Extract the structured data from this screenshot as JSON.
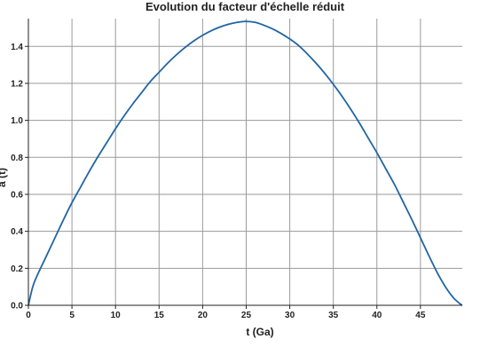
{
  "chart_data": {
    "type": "line",
    "title": "Evolution du facteur d'échelle réduit",
    "xlabel": "t (Ga)",
    "ylabel": "a (t)",
    "xlim": [
      0,
      49.8
    ],
    "ylim": [
      0,
      1.55
    ],
    "xticks": [
      0,
      5,
      10,
      15,
      20,
      25,
      30,
      35,
      40,
      45
    ],
    "yticks": [
      0.0,
      0.2,
      0.4,
      0.6,
      0.8,
      1.0,
      1.2,
      1.4
    ],
    "xtick_labels": [
      "0",
      "5",
      "10",
      "15",
      "20",
      "25",
      "30",
      "35",
      "40",
      "45"
    ],
    "ytick_labels": [
      "0.0",
      "0.2",
      "0.4",
      "0.6",
      "0.8",
      "1.0",
      "1.2",
      "1.4"
    ],
    "grid": true,
    "legend": false,
    "series": [
      {
        "color": "#2065a3",
        "x": [
          0,
          0.5,
          1,
          2,
          3,
          4,
          5,
          6,
          7,
          8,
          9,
          10,
          11,
          12,
          13,
          14,
          15,
          16,
          17,
          18,
          19,
          20,
          21,
          22,
          23,
          24,
          24.9,
          26,
          27,
          28,
          29,
          30,
          31,
          32,
          33,
          34,
          35,
          36,
          37,
          38,
          39,
          40,
          41,
          42,
          43,
          44,
          45,
          46,
          47,
          48,
          48.8,
          49.3,
          49.6,
          49.8
        ],
        "y": [
          0,
          0.1,
          0.16,
          0.26,
          0.36,
          0.46,
          0.555,
          0.64,
          0.725,
          0.805,
          0.88,
          0.955,
          1.025,
          1.09,
          1.15,
          1.21,
          1.26,
          1.31,
          1.355,
          1.395,
          1.43,
          1.46,
          1.485,
          1.505,
          1.52,
          1.53,
          1.535,
          1.53,
          1.515,
          1.495,
          1.47,
          1.44,
          1.405,
          1.36,
          1.31,
          1.255,
          1.195,
          1.13,
          1.06,
          0.985,
          0.905,
          0.825,
          0.74,
          0.655,
          0.56,
          0.465,
          0.365,
          0.265,
          0.17,
          0.09,
          0.04,
          0.018,
          0.006,
          0
        ]
      }
    ]
  }
}
